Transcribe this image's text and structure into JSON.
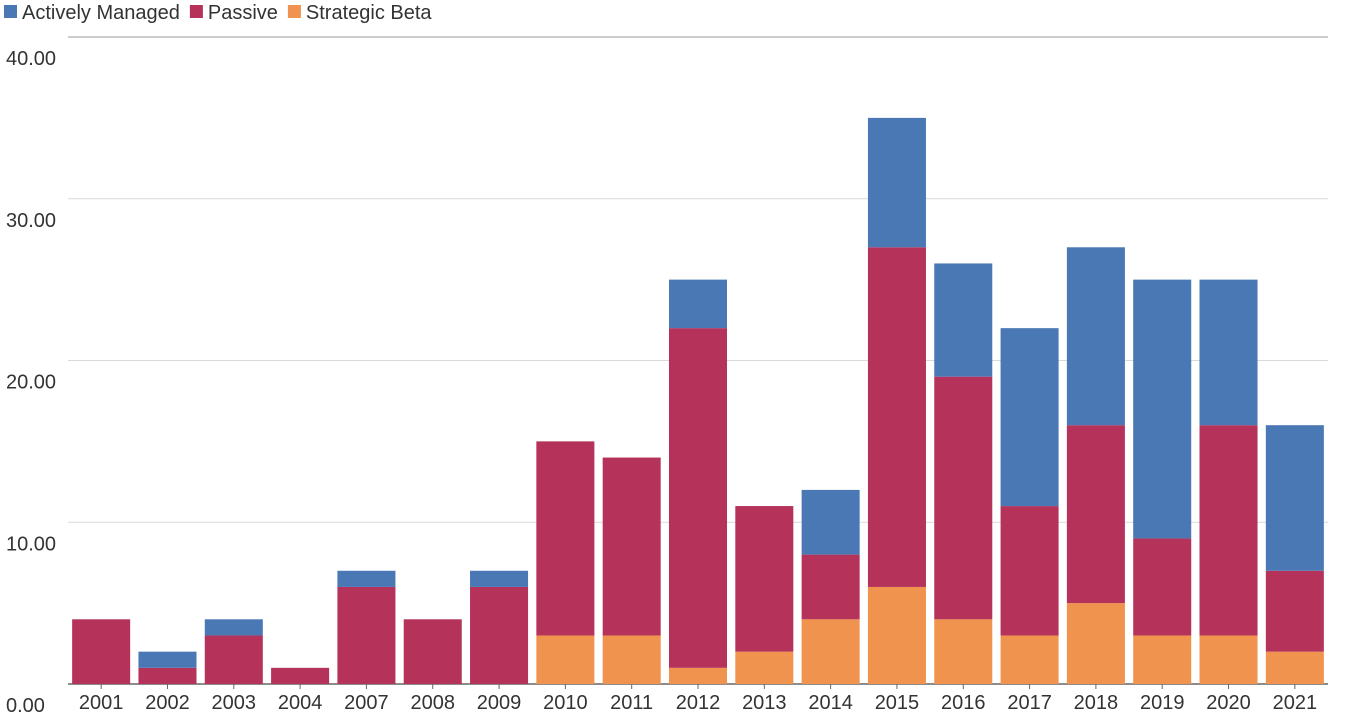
{
  "chart_data": {
    "type": "bar",
    "stacked": true,
    "categories": [
      "2001",
      "2002",
      "2003",
      "2004",
      "2007",
      "2008",
      "2009",
      "2010",
      "2011",
      "2012",
      "2013",
      "2014",
      "2015",
      "2016",
      "2017",
      "2018",
      "2019",
      "2020",
      "2021"
    ],
    "series": [
      {
        "name": "Strategic Beta",
        "color": "#F0934E",
        "values": [
          0,
          0,
          0,
          0,
          0,
          0,
          0,
          3,
          3,
          1,
          2,
          4,
          6,
          4,
          3,
          5,
          3,
          3,
          2
        ]
      },
      {
        "name": "Passive",
        "color": "#B5325A",
        "values": [
          4,
          1,
          3,
          1,
          6,
          4,
          6,
          12,
          11,
          21,
          9,
          4,
          21,
          15,
          8,
          11,
          6,
          13,
          5
        ]
      },
      {
        "name": "Actively Managed",
        "color": "#4A78B5",
        "values": [
          0,
          1,
          1,
          0,
          1,
          0,
          1,
          0,
          0,
          3,
          0,
          4,
          8,
          7,
          11,
          11,
          16,
          9,
          9
        ]
      }
    ],
    "legend": {
      "position": "top-left",
      "order": [
        "Actively Managed",
        "Passive",
        "Strategic Beta"
      ]
    },
    "y_ticks": [
      "0.00",
      "10.00",
      "20.00",
      "30.00",
      "40.00"
    ],
    "ylim": [
      0,
      40
    ],
    "grid": true,
    "title": "",
    "xlabel": "",
    "ylabel": ""
  }
}
